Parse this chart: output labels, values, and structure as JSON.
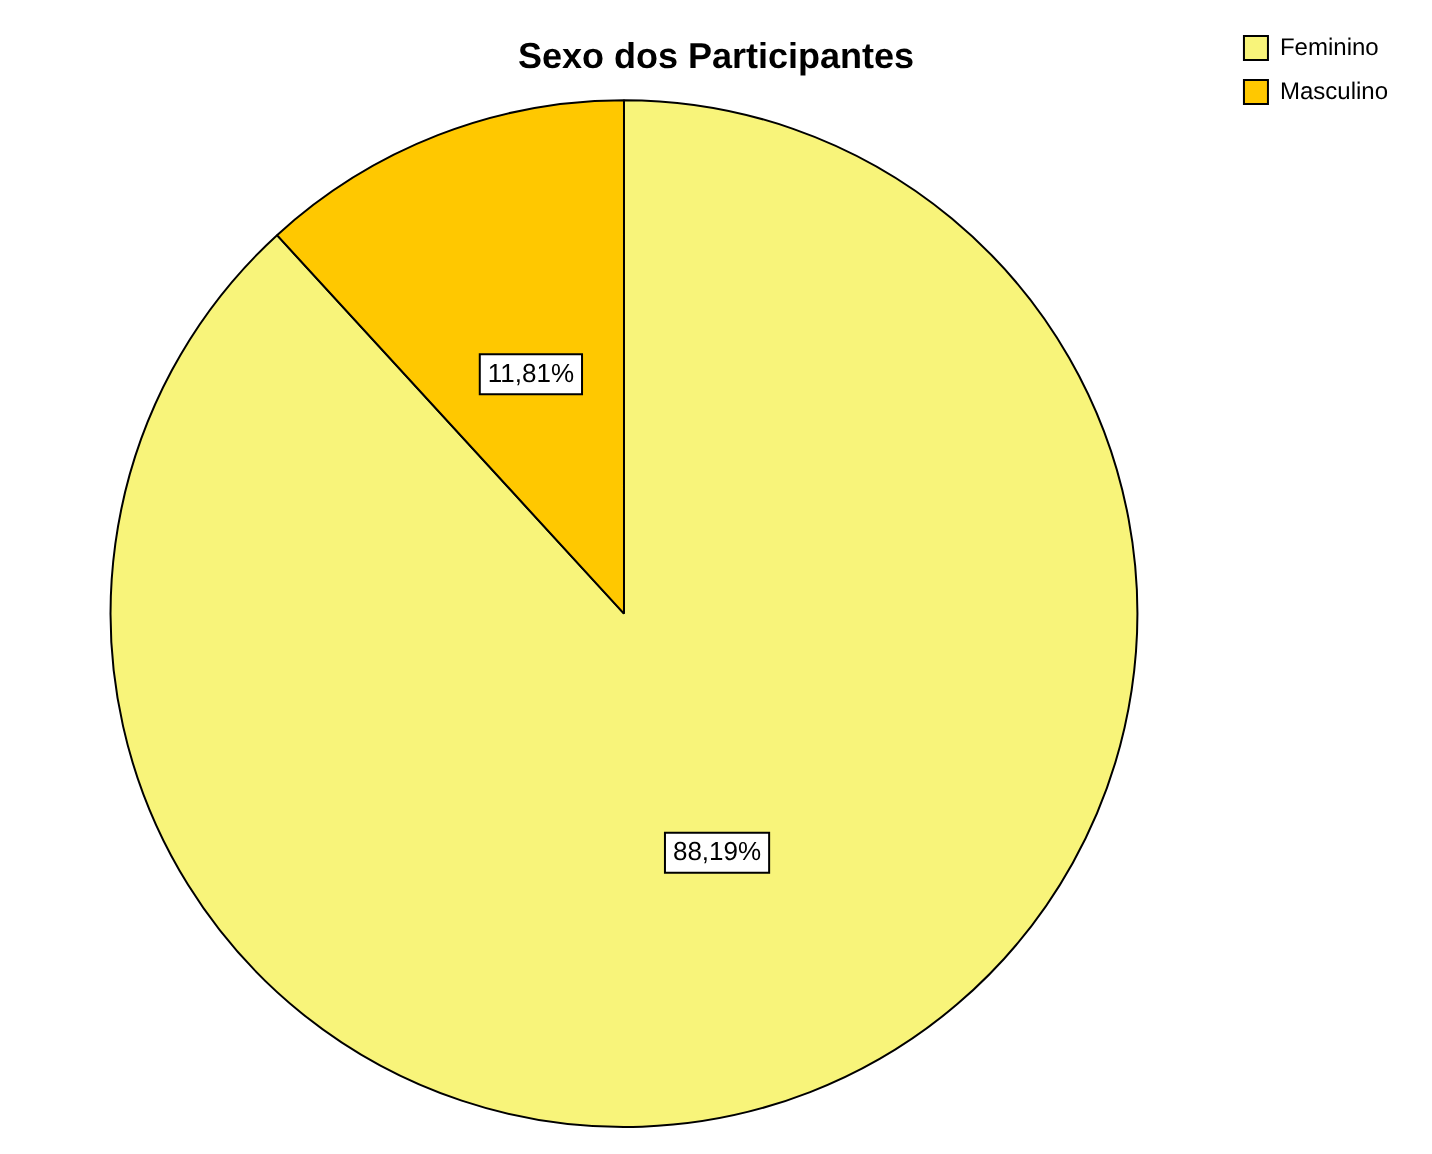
{
  "chart_data": {
    "type": "pie",
    "title": "Sexo dos Participantes",
    "categories": [
      "Feminino",
      "Masculino"
    ],
    "values": [
      88.19,
      11.81
    ],
    "colors": [
      "#f8f47a",
      "#ffc800"
    ],
    "value_labels": [
      "88,19%",
      "11,81%"
    ],
    "legend": "top right"
  }
}
